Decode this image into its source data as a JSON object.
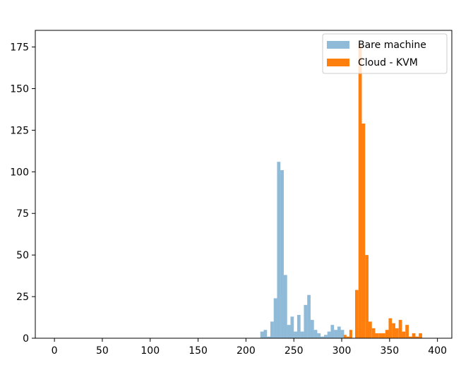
{
  "chart_data": {
    "type": "histogram",
    "title": "",
    "xlabel": "",
    "ylabel": "",
    "xlim": [
      -20,
      415
    ],
    "ylim": [
      0,
      185
    ],
    "xticks": [
      0,
      50,
      100,
      150,
      200,
      250,
      300,
      350,
      400
    ],
    "yticks": [
      0,
      25,
      50,
      75,
      100,
      125,
      150,
      175
    ],
    "grid": false,
    "legend_position": "top-right",
    "series": [
      {
        "name": "Bare machine",
        "color": "#1f77b4",
        "opacity": 0.5,
        "bins": [
          [
            215,
            218.5,
            4
          ],
          [
            218.5,
            222,
            5
          ],
          [
            222,
            225.5,
            1
          ],
          [
            225.5,
            229,
            10
          ],
          [
            229,
            232.5,
            24
          ],
          [
            232.5,
            236,
            106
          ],
          [
            236,
            239.5,
            101
          ],
          [
            239.5,
            243,
            38
          ],
          [
            243,
            246.5,
            8
          ],
          [
            246.5,
            250,
            13
          ],
          [
            250,
            253.5,
            4
          ],
          [
            253.5,
            257,
            14
          ],
          [
            257,
            260.5,
            4
          ],
          [
            260.5,
            264,
            20
          ],
          [
            264,
            267.5,
            26
          ],
          [
            267.5,
            271,
            11
          ],
          [
            271,
            274.5,
            5
          ],
          [
            274.5,
            278,
            3
          ],
          [
            278,
            281.5,
            1
          ],
          [
            281.5,
            285,
            2
          ],
          [
            285,
            288.5,
            4
          ],
          [
            288.5,
            292,
            8
          ],
          [
            292,
            295.5,
            5
          ],
          [
            295.5,
            299,
            7
          ],
          [
            299,
            302.5,
            5
          ]
        ]
      },
      {
        "name": "Cloud - KVM",
        "color": "#ff7f0e",
        "opacity": 1,
        "bins": [
          [
            302,
            305,
            2
          ],
          [
            305,
            308,
            1
          ],
          [
            308,
            311,
            5
          ],
          [
            314,
            317.5,
            29
          ],
          [
            317.5,
            321,
            177
          ],
          [
            321,
            324.5,
            129
          ],
          [
            324.5,
            328,
            50
          ],
          [
            328,
            331.5,
            10
          ],
          [
            331.5,
            335,
            6
          ],
          [
            335,
            338.5,
            3
          ],
          [
            338.5,
            342,
            3
          ],
          [
            342,
            345.5,
            3
          ],
          [
            345.5,
            349,
            5
          ],
          [
            349,
            352.5,
            12
          ],
          [
            352.5,
            356,
            9
          ],
          [
            356,
            359.5,
            6
          ],
          [
            359.5,
            363,
            11
          ],
          [
            363,
            366.5,
            4
          ],
          [
            366.5,
            370,
            8
          ],
          [
            370,
            373.5,
            1
          ],
          [
            373.5,
            377,
            3
          ],
          [
            377,
            380.5,
            1
          ],
          [
            380.5,
            384,
            3
          ]
        ]
      }
    ]
  }
}
